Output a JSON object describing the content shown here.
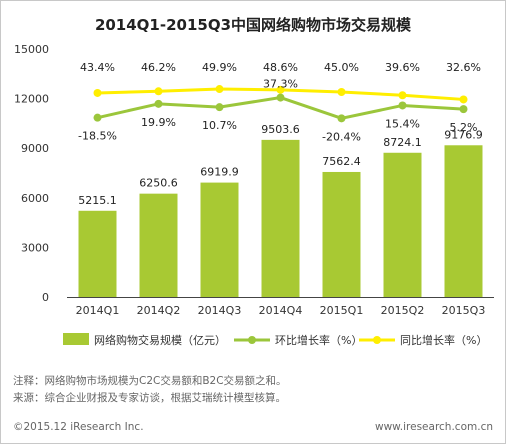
{
  "chart_data": {
    "type": "bar",
    "title": "2014Q1-2015Q3中国网络购物市场交易规模",
    "categories": [
      "2014Q1",
      "2014Q2",
      "2014Q3",
      "2014Q4",
      "2015Q1",
      "2015Q2",
      "2015Q3"
    ],
    "ylim": [
      0,
      15000
    ],
    "yticks": [
      0,
      3000,
      6000,
      9000,
      12000,
      15000
    ],
    "grid": false,
    "legend_position": "bottom",
    "series": [
      {
        "name": "网络购物交易规模（亿元）",
        "type": "bar",
        "color": "#a8c933",
        "values": [
          5215.1,
          6250.6,
          6919.9,
          9503.6,
          7562.4,
          8724.1,
          9176.9
        ],
        "labels": [
          "5215.1",
          "6250.6",
          "6919.9",
          "9503.6",
          "7562.4",
          "8724.1",
          "9176.9"
        ]
      },
      {
        "name": "环比增长率（%）",
        "type": "line",
        "color": "#9bc63b",
        "values": [
          -18.5,
          19.9,
          10.7,
          37.3,
          -20.4,
          15.4,
          5.2
        ],
        "labels": [
          "-18.5%",
          "19.9%",
          "10.7%",
          "37.3%",
          "-20.4%",
          "15.4%",
          "5.2%"
        ]
      },
      {
        "name": "同比增长率（%）",
        "type": "line",
        "color": "#ffee00",
        "values": [
          43.4,
          46.2,
          49.9,
          48.6,
          45.0,
          39.6,
          32.6
        ],
        "labels": [
          "43.4%",
          "46.2%",
          "49.9%",
          "48.6%",
          "45.0%",
          "39.6%",
          "32.6%"
        ]
      }
    ]
  },
  "notes": {
    "note1": "注释：网络购物市场规模为C2C交易额和B2C交易额之和。",
    "note2": "来源：综合企业财报及专家访谈，根据艾瑞统计模型核算。"
  },
  "footer": {
    "copyright": "©2015.12 iResearch Inc.",
    "website": "www.iresearch.com.cn"
  }
}
